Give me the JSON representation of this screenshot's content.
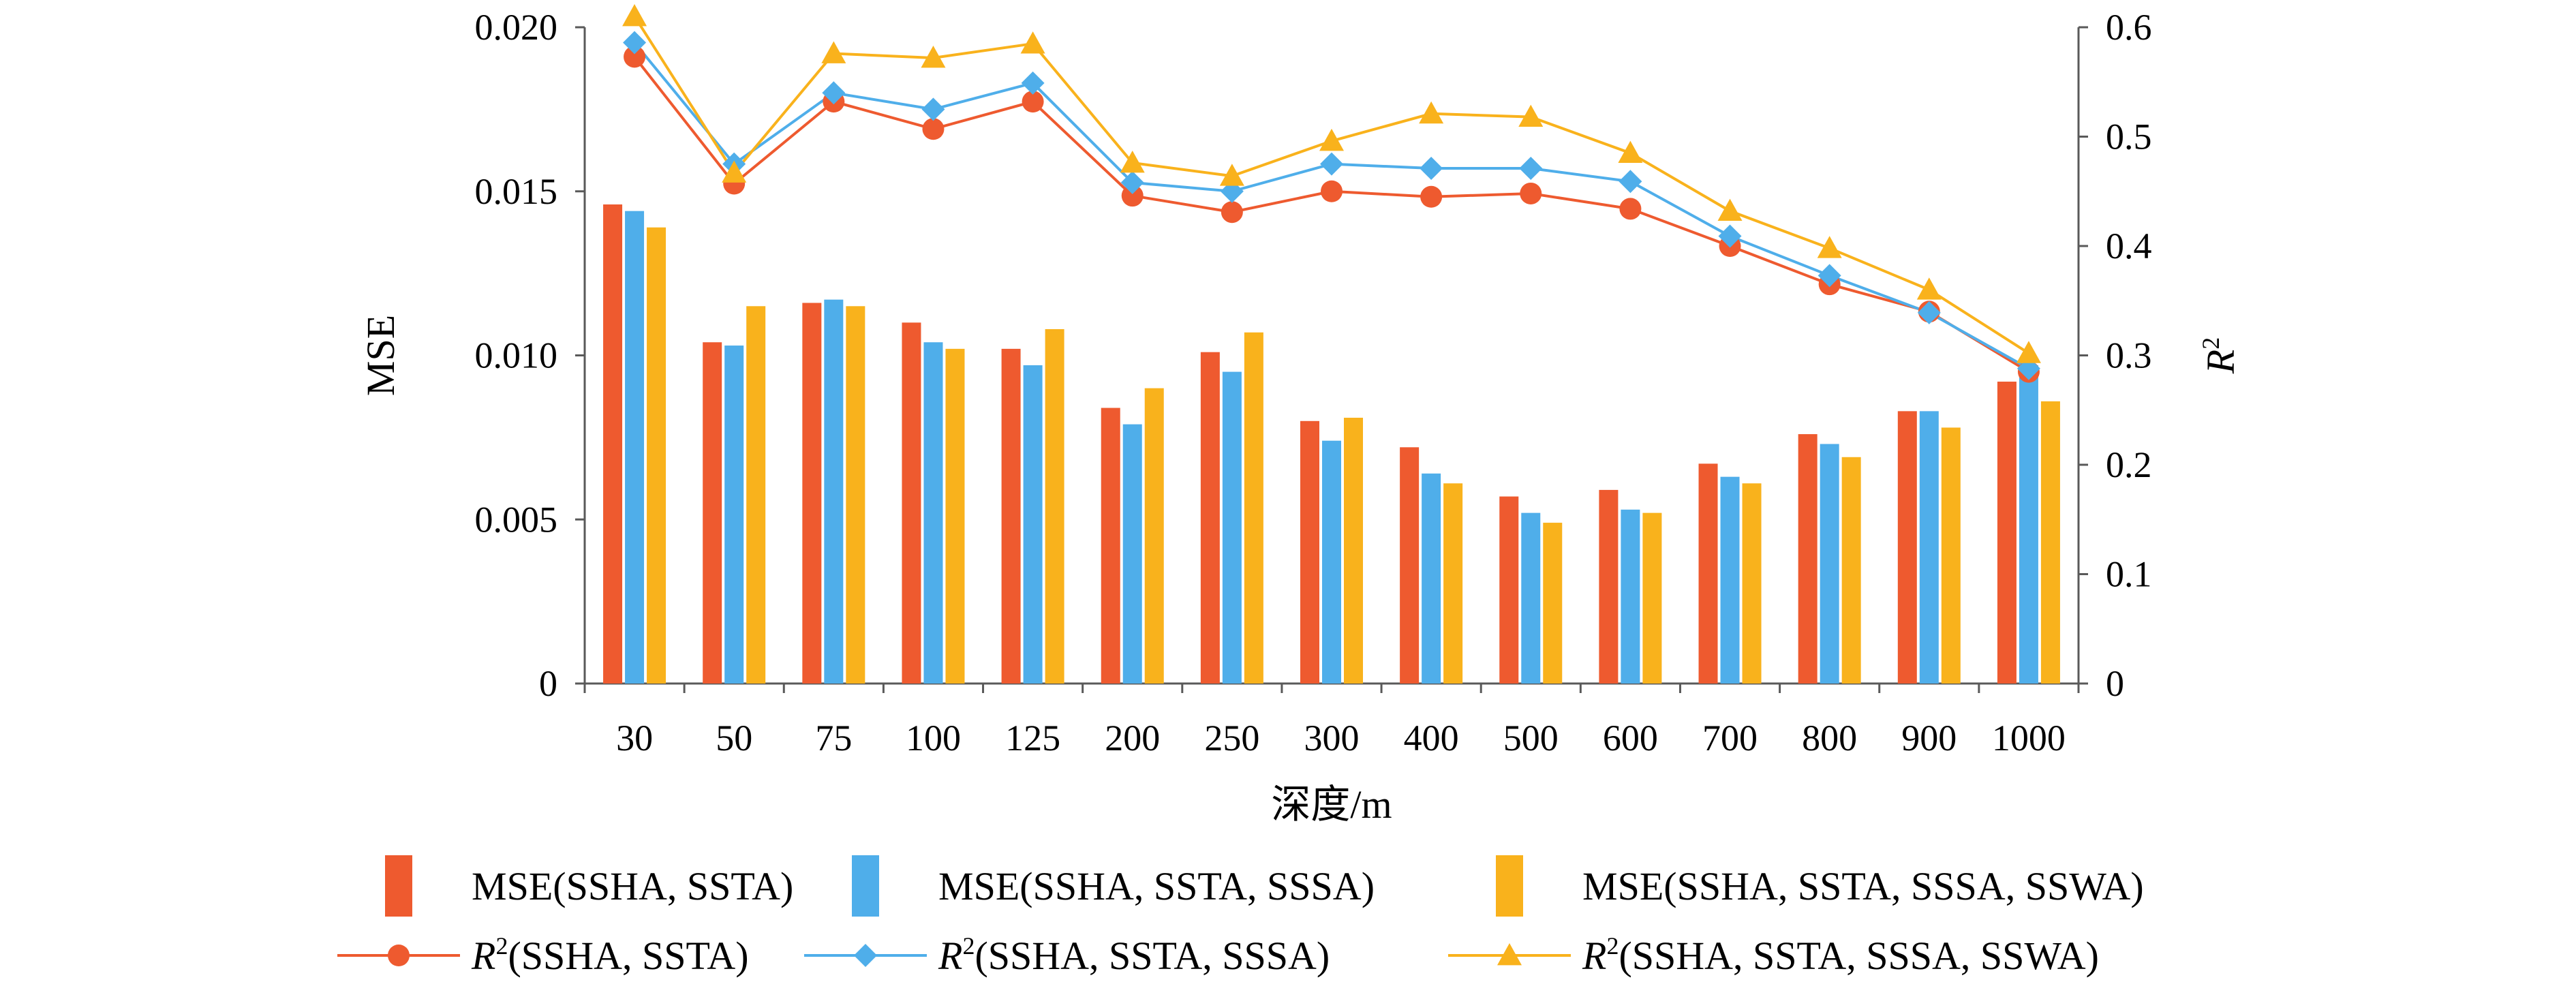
{
  "chart_data": {
    "type": "bar",
    "title": "",
    "xlabel": "深度/m",
    "ylabel": "MSE",
    "y2label": "R²",
    "ylim": [
      0,
      0.02
    ],
    "y2lim": [
      0,
      0.6
    ],
    "yticks": [
      "0",
      "0.005",
      "0.010",
      "0.015",
      "0.020"
    ],
    "y2ticks": [
      "0",
      "0.1",
      "0.2",
      "0.3",
      "0.4",
      "0.5",
      "0.6"
    ],
    "categories": [
      "30",
      "50",
      "75",
      "100",
      "125",
      "200",
      "250",
      "300",
      "400",
      "500",
      "600",
      "700",
      "800",
      "900",
      "1000"
    ],
    "bar_series": [
      {
        "name": "MSE(SSHA, SSTA)",
        "color": "#EE5A2F",
        "values": [
          0.0146,
          0.0104,
          0.0116,
          0.011,
          0.0102,
          0.0084,
          0.0101,
          0.008,
          0.0072,
          0.0057,
          0.0059,
          0.0067,
          0.0076,
          0.0083,
          0.0092
        ]
      },
      {
        "name": "MSE(SSHA, SSTA, SSSA)",
        "color": "#4FAEEA",
        "values": [
          0.0144,
          0.0103,
          0.0117,
          0.0104,
          0.0097,
          0.0079,
          0.0095,
          0.0074,
          0.0064,
          0.0052,
          0.0053,
          0.0063,
          0.0073,
          0.0083,
          0.0097
        ]
      },
      {
        "name": "MSE(SSHA, SSTA, SSSA, SSWA)",
        "color": "#F9B21C",
        "values": [
          0.0139,
          0.0115,
          0.0115,
          0.0102,
          0.0108,
          0.009,
          0.0107,
          0.0081,
          0.0061,
          0.0049,
          0.0052,
          0.0061,
          0.0069,
          0.0078,
          0.0086
        ]
      }
    ],
    "line_series": [
      {
        "name": "R²(SSHA, SSTA)",
        "prefix": "R",
        "sup": "2",
        "suffix": "(SSHA, SSTA)",
        "color": "#EE5A2F",
        "marker": "circle",
        "values": [
          0.573,
          0.457,
          0.532,
          0.507,
          0.532,
          0.446,
          0.431,
          0.45,
          0.445,
          0.448,
          0.434,
          0.4,
          0.365,
          0.34,
          0.285
        ]
      },
      {
        "name": "R²(SSHA, SSTA, SSSA)",
        "prefix": "R",
        "sup": "2",
        "suffix": "(SSHA, SSTA, SSSA)",
        "color": "#4FAEEA",
        "marker": "diamond",
        "values": [
          0.586,
          0.475,
          0.54,
          0.525,
          0.549,
          0.458,
          0.45,
          0.475,
          0.471,
          0.471,
          0.459,
          0.409,
          0.373,
          0.339,
          0.288
        ]
      },
      {
        "name": "R²(SSHA, SSTA, SSSA, SSWA)",
        "prefix": "R",
        "sup": "2",
        "suffix": "(SSHA, SSTA, SSSA, SSWA)",
        "color": "#F9B21C",
        "marker": "triangle",
        "values": [
          0.61,
          0.467,
          0.576,
          0.572,
          0.585,
          0.476,
          0.464,
          0.496,
          0.521,
          0.518,
          0.485,
          0.432,
          0.398,
          0.36,
          0.302
        ]
      }
    ],
    "legend_position": "bottom"
  }
}
